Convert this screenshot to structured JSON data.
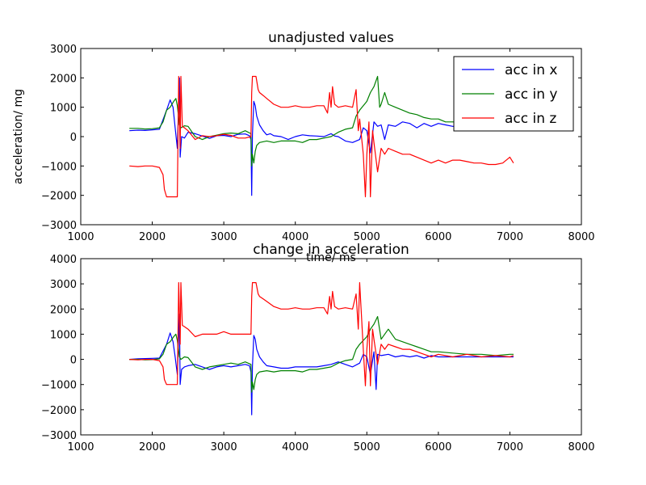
{
  "chart_data": [
    {
      "type": "line",
      "title": "unadjusted values",
      "xlabel": "time/ ms",
      "ylabel": "acceleration/ mg",
      "xlim": [
        1000,
        8000
      ],
      "ylim": [
        -3000,
        3000
      ],
      "xticks": [
        1000,
        2000,
        3000,
        4000,
        5000,
        6000,
        7000,
        8000
      ],
      "yticks": [
        -3000,
        -2000,
        -1000,
        0,
        1000,
        2000,
        3000
      ],
      "grid": false,
      "legend": "top-right",
      "series": [
        {
          "name": "acc in x",
          "color": "#0000ff",
          "x": [
            1680,
            1800,
            1900,
            2000,
            2100,
            2200,
            2250,
            2290,
            2320,
            2350,
            2380,
            2390,
            2410,
            2450,
            2500,
            2600,
            2700,
            2800,
            2900,
            3000,
            3100,
            3200,
            3300,
            3360,
            3380,
            3390,
            3400,
            3420,
            3440,
            3460,
            3500,
            3550,
            3600,
            3650,
            3700,
            3800,
            3900,
            4000,
            4100,
            4200,
            4300,
            4400,
            4500,
            4550,
            4600,
            4700,
            4800,
            4900,
            4950,
            5000,
            5050,
            5100,
            5150,
            5200,
            5250,
            5300,
            5400,
            5500,
            5600,
            5700,
            5800,
            5900,
            6000,
            6100,
            6200,
            6300
          ],
          "y": [
            200,
            220,
            210,
            230,
            250,
            900,
            1250,
            1000,
            300,
            -400,
            2000,
            -700,
            0,
            -50,
            150,
            100,
            20,
            -60,
            30,
            40,
            0,
            80,
            90,
            30,
            -100,
            -2000,
            50,
            1200,
            1050,
            700,
            400,
            200,
            60,
            100,
            30,
            0,
            -100,
            0,
            60,
            30,
            20,
            0,
            100,
            20,
            0,
            -150,
            -200,
            -100,
            300,
            200,
            -550,
            500,
            350,
            400,
            -100,
            400,
            350,
            500,
            450,
            300,
            450,
            350,
            450,
            400,
            350,
            350
          ]
        },
        {
          "name": "acc in y",
          "color": "#008000",
          "x": [
            1680,
            1800,
            1900,
            2000,
            2100,
            2150,
            2200,
            2250,
            2300,
            2330,
            2350,
            2380,
            2400,
            2450,
            2500,
            2600,
            2700,
            2800,
            2900,
            3000,
            3100,
            3200,
            3300,
            3380,
            3390,
            3400,
            3420,
            3440,
            3460,
            3500,
            3600,
            3700,
            3800,
            3900,
            4000,
            4100,
            4200,
            4300,
            4400,
            4500,
            4600,
            4700,
            4800,
            4850,
            4900,
            5000,
            5050,
            5100,
            5150,
            5180,
            5200,
            5250,
            5300,
            5400,
            5500,
            5600,
            5700,
            5800,
            5900,
            6000,
            6100,
            6200,
            6300
          ],
          "y": [
            280,
            280,
            260,
            270,
            300,
            500,
            900,
            1000,
            1200,
            1300,
            1050,
            400,
            300,
            370,
            350,
            0,
            -100,
            0,
            50,
            100,
            120,
            100,
            200,
            100,
            -1000,
            -600,
            -900,
            -500,
            -300,
            -200,
            -150,
            -200,
            -150,
            -150,
            -150,
            -200,
            -100,
            -100,
            -50,
            0,
            150,
            250,
            300,
            700,
            900,
            1200,
            1500,
            1700,
            2050,
            1000,
            1100,
            1500,
            1100,
            1000,
            900,
            800,
            750,
            650,
            600,
            600,
            500,
            500,
            500
          ]
        },
        {
          "name": "acc in z",
          "color": "#ff0000",
          "x": [
            1680,
            1800,
            1900,
            2000,
            2100,
            2150,
            2170,
            2200,
            2250,
            2300,
            2350,
            2370,
            2390,
            2400,
            2420,
            2450,
            2500,
            2600,
            2700,
            2800,
            2900,
            3000,
            3100,
            3200,
            3300,
            3380,
            3390,
            3400,
            3420,
            3450,
            3480,
            3500,
            3550,
            3600,
            3700,
            3800,
            3900,
            4000,
            4100,
            4200,
            4300,
            4400,
            4450,
            4480,
            4500,
            4520,
            4550,
            4600,
            4700,
            4800,
            4850,
            4880,
            4900,
            4950,
            4980,
            5000,
            5030,
            5050,
            5080,
            5100,
            5150,
            5200,
            5250,
            5300,
            5400,
            5500,
            5600,
            5700,
            5800,
            5900,
            6000,
            6100,
            6200,
            6300,
            6400,
            6500,
            6600,
            6700,
            6800,
            6900,
            7000,
            7050
          ],
          "y": [
            -1000,
            -1020,
            -1000,
            -1000,
            -1050,
            -1300,
            -1800,
            -2050,
            -2050,
            -2050,
            -2050,
            2050,
            -400,
            2050,
            350,
            300,
            200,
            -100,
            30,
            0,
            30,
            80,
            40,
            -50,
            -50,
            0,
            1500,
            2050,
            2050,
            2050,
            1600,
            1500,
            1400,
            1300,
            1100,
            1000,
            1000,
            1050,
            1000,
            1000,
            1050,
            1050,
            800,
            1500,
            1000,
            1700,
            1100,
            1000,
            1050,
            1000,
            1600,
            200,
            600,
            -600,
            -2050,
            -600,
            500,
            -2050,
            200,
            -200,
            -1200,
            -400,
            -600,
            -400,
            -500,
            -600,
            -600,
            -700,
            -800,
            -900,
            -800,
            -900,
            -800,
            -800,
            -850,
            -900,
            -900,
            -950,
            -950,
            -900,
            -700,
            -900
          ]
        }
      ]
    },
    {
      "type": "line",
      "title": "change in acceleration",
      "xlabel": "",
      "ylabel": "",
      "xlim": [
        1000,
        8000
      ],
      "ylim": [
        -3000,
        4000
      ],
      "xticks": [
        1000,
        2000,
        3000,
        4000,
        5000,
        6000,
        7000,
        8000
      ],
      "yticks": [
        -3000,
        -2000,
        -1000,
        0,
        1000,
        2000,
        3000,
        4000
      ],
      "grid": false,
      "series": [
        {
          "color": "#0000ff",
          "x": [
            1680,
            1800,
            1900,
            2000,
            2100,
            2200,
            2250,
            2290,
            2320,
            2350,
            2380,
            2390,
            2410,
            2450,
            2500,
            2600,
            2700,
            2800,
            2900,
            3000,
            3100,
            3200,
            3300,
            3360,
            3380,
            3390,
            3400,
            3420,
            3440,
            3460,
            3500,
            3550,
            3600,
            3700,
            3800,
            3900,
            4000,
            4100,
            4200,
            4300,
            4400,
            4500,
            4600,
            4700,
            4800,
            4900,
            4950,
            5000,
            5050,
            5100,
            5130,
            5150,
            5200,
            5300,
            5400,
            5500,
            5600,
            5700,
            5800,
            5900,
            6000,
            6100,
            6200,
            6400,
            6600,
            6800,
            7000,
            7050
          ],
          "y": [
            0,
            20,
            30,
            40,
            50,
            600,
            1050,
            700,
            100,
            -600,
            1800,
            -1000,
            -400,
            -300,
            -250,
            -200,
            -300,
            -400,
            -300,
            -250,
            -300,
            -250,
            -200,
            -250,
            -500,
            -2200,
            -300,
            950,
            800,
            400,
            100,
            -100,
            -250,
            -300,
            -350,
            -350,
            -300,
            -300,
            -300,
            -300,
            -250,
            -200,
            -100,
            -200,
            -300,
            -150,
            200,
            100,
            -600,
            300,
            -1200,
            200,
            150,
            200,
            100,
            150,
            100,
            150,
            50,
            150,
            100,
            100,
            100,
            100,
            100,
            100,
            100,
            100
          ]
        },
        {
          "color": "#008000",
          "x": [
            1680,
            1800,
            1900,
            2000,
            2100,
            2150,
            2200,
            2250,
            2300,
            2330,
            2350,
            2380,
            2400,
            2450,
            2500,
            2600,
            2700,
            2800,
            2900,
            3000,
            3100,
            3200,
            3300,
            3380,
            3390,
            3400,
            3420,
            3440,
            3460,
            3500,
            3600,
            3700,
            3800,
            3900,
            4000,
            4100,
            4200,
            4300,
            4400,
            4500,
            4600,
            4700,
            4800,
            4850,
            4900,
            5000,
            5050,
            5100,
            5150,
            5200,
            5300,
            5400,
            5500,
            5600,
            5700,
            5800,
            5900,
            6000,
            6200,
            6400,
            6600,
            6800,
            7000,
            7050
          ],
          "y": [
            0,
            0,
            -20,
            -10,
            20,
            200,
            600,
            700,
            900,
            1000,
            750,
            100,
            0,
            100,
            70,
            -300,
            -400,
            -300,
            -250,
            -200,
            -150,
            -200,
            -100,
            -200,
            -1300,
            -900,
            -1200,
            -800,
            -600,
            -500,
            -450,
            -500,
            -450,
            -450,
            -450,
            -500,
            -400,
            -400,
            -350,
            -300,
            -150,
            -50,
            0,
            400,
            600,
            900,
            1200,
            1400,
            1700,
            800,
            1200,
            800,
            700,
            600,
            500,
            400,
            300,
            300,
            250,
            200,
            200,
            150,
            200,
            200
          ]
        },
        {
          "color": "#ff0000",
          "x": [
            1680,
            1800,
            1900,
            2000,
            2100,
            2150,
            2170,
            2200,
            2250,
            2300,
            2350,
            2370,
            2390,
            2400,
            2420,
            2450,
            2500,
            2600,
            2700,
            2800,
            2900,
            3000,
            3100,
            3200,
            3300,
            3380,
            3390,
            3400,
            3420,
            3450,
            3480,
            3500,
            3550,
            3600,
            3700,
            3800,
            3900,
            4000,
            4100,
            4200,
            4300,
            4400,
            4450,
            4480,
            4500,
            4520,
            4550,
            4600,
            4700,
            4800,
            4850,
            4880,
            4900,
            4950,
            4980,
            5000,
            5030,
            5050,
            5080,
            5100,
            5150,
            5200,
            5250,
            5300,
            5400,
            5500,
            5600,
            5700,
            5800,
            5900,
            6000,
            6200,
            6400,
            6600,
            6800,
            7000,
            7050
          ],
          "y": [
            0,
            -20,
            0,
            0,
            -50,
            -300,
            -800,
            -1000,
            -1000,
            -1000,
            -1000,
            3050,
            600,
            3050,
            1350,
            1300,
            1200,
            900,
            1000,
            1000,
            1000,
            1100,
            1000,
            1000,
            1000,
            1000,
            2500,
            3050,
            3050,
            3050,
            2600,
            2500,
            2400,
            2300,
            2100,
            2000,
            2000,
            2050,
            2000,
            2000,
            2050,
            2050,
            1800,
            2500,
            2000,
            2700,
            2100,
            2000,
            2050,
            2000,
            2600,
            1200,
            3050,
            400,
            -1050,
            400,
            1500,
            -1050,
            1200,
            800,
            -200,
            600,
            400,
            600,
            500,
            400,
            400,
            300,
            200,
            100,
            200,
            100,
            200,
            100,
            150,
            100,
            150
          ]
        }
      ]
    }
  ]
}
